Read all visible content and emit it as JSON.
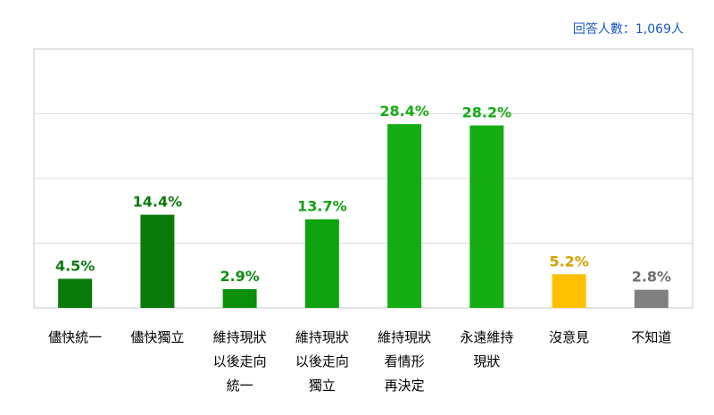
{
  "header": {
    "respondents": "回答人數：1,069人"
  },
  "chart_data": {
    "type": "bar",
    "title": "",
    "xlabel": "",
    "ylabel": "",
    "ylim": [
      0,
      40
    ],
    "grid": true,
    "legend": "none",
    "categories": [
      [
        "儘快統一"
      ],
      [
        "儘快獨立"
      ],
      [
        "維持現狀",
        "以後走向",
        "統一"
      ],
      [
        "維持現狀",
        "以後走向",
        "獨立"
      ],
      [
        "維持現狀",
        "看情形",
        "再決定"
      ],
      [
        "永遠維持",
        "現狀"
      ],
      [
        "沒意見"
      ],
      [
        "不知道"
      ]
    ],
    "values": [
      4.5,
      14.4,
      2.9,
      13.7,
      28.4,
      28.2,
      5.2,
      2.8
    ],
    "value_labels": [
      "4.5%",
      "14.4%",
      "2.9%",
      "13.7%",
      "28.4%",
      "28.2%",
      "5.2%",
      "2.8%"
    ],
    "bar_colors": [
      "#0a7a0a",
      "#0a7a0a",
      "#0a8f0a",
      "#0fa40f",
      "#14ad14",
      "#14ad14",
      "#ffc000",
      "#808080"
    ],
    "label_colors": [
      "#0a7a0a",
      "#0a7a0a",
      "#0a8f0a",
      "#0fa40f",
      "#14ad14",
      "#14ad14",
      "#d4a000",
      "#707070"
    ]
  }
}
